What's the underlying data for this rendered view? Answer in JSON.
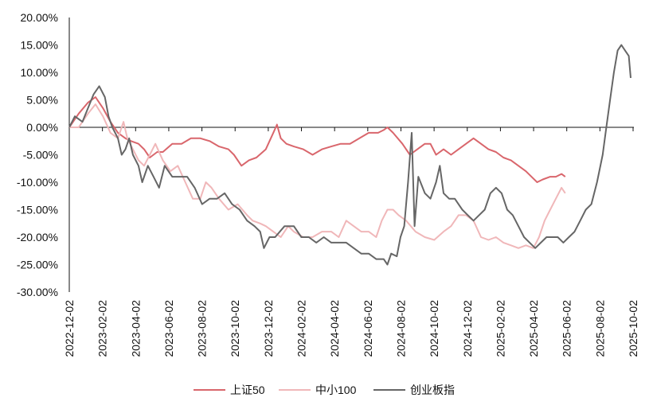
{
  "chart_data": {
    "type": "line",
    "ylim": [
      -30,
      20
    ],
    "yticks": [
      "20.00%",
      "15.00%",
      "10.00%",
      "5.00%",
      "0.00%",
      "-5.00%",
      "-10.00%",
      "-15.00%",
      "-20.00%",
      "-25.00%",
      "-30.00%"
    ],
    "xticks": [
      "2022-12-02",
      "2023-02-02",
      "2023-04-02",
      "2023-06-02",
      "2023-08-02",
      "2023-10-02",
      "2023-12-02",
      "2024-02-02",
      "2024-04-02",
      "2024-06-02",
      "2024-08-02",
      "2024-10-02",
      "2024-12-02",
      "2025-02-02",
      "2025-04-02",
      "2025-06-02",
      "2025-08-02",
      "2025-10-02"
    ],
    "series": [
      {
        "name": "上证50",
        "color": "#d9666c",
        "values": [
          [
            0,
            0
          ],
          [
            0.5,
            2.5
          ],
          [
            1,
            4.5
          ],
          [
            1.4,
            5.5
          ],
          [
            1.8,
            3.5
          ],
          [
            2.2,
            1
          ],
          [
            2.6,
            -1
          ],
          [
            3,
            -2
          ],
          [
            3.3,
            -2.5
          ],
          [
            3.7,
            -3
          ],
          [
            4,
            -4
          ],
          [
            4.3,
            -5.5
          ],
          [
            4.7,
            -4.5
          ],
          [
            5,
            -4.5
          ],
          [
            5.5,
            -3
          ],
          [
            6,
            -3
          ],
          [
            6.5,
            -2
          ],
          [
            7,
            -2
          ],
          [
            7.5,
            -2.5
          ],
          [
            8,
            -3.5
          ],
          [
            8.5,
            -4
          ],
          [
            8.8,
            -5
          ],
          [
            9.2,
            -7
          ],
          [
            9.6,
            -6
          ],
          [
            10,
            -5.5
          ],
          [
            10.5,
            -4
          ],
          [
            10.9,
            -1
          ],
          [
            11.1,
            0.5
          ],
          [
            11.3,
            -2
          ],
          [
            11.6,
            -3
          ],
          [
            12,
            -3.5
          ],
          [
            12.5,
            -4
          ],
          [
            13,
            -5
          ],
          [
            13.5,
            -4
          ],
          [
            14,
            -3.5
          ],
          [
            14.5,
            -3
          ],
          [
            15,
            -3
          ],
          [
            15.5,
            -2
          ],
          [
            16,
            -1
          ],
          [
            16.5,
            -1
          ],
          [
            16.8,
            -0.5
          ],
          [
            17,
            0
          ],
          [
            17.3,
            -1
          ],
          [
            17.8,
            -3
          ],
          [
            18.2,
            -5
          ],
          [
            18.6,
            -4
          ],
          [
            19,
            -3
          ],
          [
            19.3,
            -3
          ],
          [
            19.6,
            -5
          ],
          [
            20,
            -4
          ],
          [
            20.4,
            -5
          ],
          [
            20.8,
            -4
          ],
          [
            21.2,
            -3
          ],
          [
            21.6,
            -2
          ],
          [
            22,
            -3
          ],
          [
            22.4,
            -4
          ],
          [
            22.8,
            -4.5
          ],
          [
            23.2,
            -5.5
          ],
          [
            23.6,
            -6
          ],
          [
            24,
            -7
          ],
          [
            24.4,
            -8
          ],
          [
            24.7,
            -9
          ],
          [
            25,
            -10
          ],
          [
            25.3,
            -9.5
          ],
          [
            25.7,
            -9
          ],
          [
            26,
            -9
          ],
          [
            26.3,
            -8.5
          ],
          [
            26.5,
            -9
          ]
        ]
      },
      {
        "name": "中小100",
        "color": "#f0b7b9",
        "values": [
          [
            0,
            0
          ],
          [
            0.5,
            0
          ],
          [
            1,
            2.5
          ],
          [
            1.4,
            4.2
          ],
          [
            1.8,
            2
          ],
          [
            2.2,
            -1
          ],
          [
            2.6,
            -2
          ],
          [
            2.9,
            1
          ],
          [
            3.1,
            -2
          ],
          [
            3.4,
            -4
          ],
          [
            3.7,
            -6
          ],
          [
            4,
            -7
          ],
          [
            4.3,
            -5
          ],
          [
            4.6,
            -3
          ],
          [
            5,
            -6
          ],
          [
            5.4,
            -8
          ],
          [
            5.8,
            -7
          ],
          [
            6.2,
            -10
          ],
          [
            6.6,
            -13
          ],
          [
            7,
            -13
          ],
          [
            7.3,
            -10
          ],
          [
            7.6,
            -11
          ],
          [
            8,
            -13
          ],
          [
            8.5,
            -15
          ],
          [
            9,
            -14
          ],
          [
            9.5,
            -16
          ],
          [
            9.8,
            -17
          ],
          [
            10.2,
            -17.5
          ],
          [
            10.5,
            -18
          ],
          [
            10.9,
            -19
          ],
          [
            11.3,
            -20
          ],
          [
            11.7,
            -18
          ],
          [
            12,
            -19
          ],
          [
            12.5,
            -20
          ],
          [
            13,
            -20
          ],
          [
            13.5,
            -19
          ],
          [
            14,
            -19
          ],
          [
            14.4,
            -20
          ],
          [
            14.8,
            -17
          ],
          [
            15.2,
            -18
          ],
          [
            15.6,
            -19
          ],
          [
            16,
            -19
          ],
          [
            16.4,
            -20
          ],
          [
            16.7,
            -17
          ],
          [
            17,
            -15
          ],
          [
            17.3,
            -15
          ],
          [
            17.6,
            -16
          ],
          [
            18,
            -17
          ],
          [
            18.5,
            -19
          ],
          [
            19,
            -20
          ],
          [
            19.5,
            -20.5
          ],
          [
            20,
            -19
          ],
          [
            20.4,
            -18
          ],
          [
            20.8,
            -16
          ],
          [
            21.2,
            -16
          ],
          [
            21.6,
            -17
          ],
          [
            22,
            -20
          ],
          [
            22.4,
            -20.5
          ],
          [
            22.8,
            -20
          ],
          [
            23.2,
            -21
          ],
          [
            23.6,
            -21.5
          ],
          [
            24,
            -22
          ],
          [
            24.4,
            -21.5
          ],
          [
            24.8,
            -22
          ],
          [
            25.1,
            -20
          ],
          [
            25.4,
            -17
          ],
          [
            25.7,
            -15
          ],
          [
            26,
            -13
          ],
          [
            26.3,
            -11
          ],
          [
            26.5,
            -12
          ]
        ]
      },
      {
        "name": "创业板指",
        "color": "#666666",
        "values": [
          [
            0,
            0
          ],
          [
            0.3,
            2
          ],
          [
            0.7,
            1
          ],
          [
            1,
            3.5
          ],
          [
            1.3,
            6
          ],
          [
            1.6,
            7.5
          ],
          [
            1.9,
            5.5
          ],
          [
            2.1,
            2
          ],
          [
            2.3,
            0
          ],
          [
            2.6,
            -2
          ],
          [
            2.8,
            -5
          ],
          [
            3,
            -4
          ],
          [
            3.2,
            -2
          ],
          [
            3.4,
            -5
          ],
          [
            3.7,
            -7
          ],
          [
            3.9,
            -10
          ],
          [
            4.2,
            -7
          ],
          [
            4.5,
            -9
          ],
          [
            4.8,
            -11
          ],
          [
            5.1,
            -7
          ],
          [
            5.5,
            -9
          ],
          [
            5.9,
            -9
          ],
          [
            6.3,
            -9
          ],
          [
            6.7,
            -11
          ],
          [
            7.1,
            -14
          ],
          [
            7.5,
            -13
          ],
          [
            7.9,
            -13
          ],
          [
            8.3,
            -12
          ],
          [
            8.7,
            -14
          ],
          [
            9.1,
            -15
          ],
          [
            9.5,
            -17
          ],
          [
            9.9,
            -18
          ],
          [
            10.2,
            -19
          ],
          [
            10.4,
            -22
          ],
          [
            10.7,
            -20
          ],
          [
            11,
            -20
          ],
          [
            11.5,
            -18
          ],
          [
            12,
            -18
          ],
          [
            12.4,
            -20
          ],
          [
            12.8,
            -20
          ],
          [
            13.2,
            -21
          ],
          [
            13.6,
            -20
          ],
          [
            14,
            -21
          ],
          [
            14.4,
            -21
          ],
          [
            14.8,
            -21
          ],
          [
            15.2,
            -22
          ],
          [
            15.6,
            -23
          ],
          [
            16,
            -23
          ],
          [
            16.4,
            -24
          ],
          [
            16.8,
            -24
          ],
          [
            17,
            -25
          ],
          [
            17.2,
            -23
          ],
          [
            17.5,
            -23.5
          ],
          [
            17.7,
            -20
          ],
          [
            17.9,
            -18
          ],
          [
            18.1,
            -10
          ],
          [
            18.3,
            -1
          ],
          [
            18.45,
            -18
          ],
          [
            18.65,
            -9
          ],
          [
            19,
            -12
          ],
          [
            19.3,
            -13
          ],
          [
            19.6,
            -10
          ],
          [
            19.8,
            -7
          ],
          [
            20,
            -12
          ],
          [
            20.3,
            -13
          ],
          [
            20.6,
            -13
          ],
          [
            21,
            -15
          ],
          [
            21.3,
            -16
          ],
          [
            21.6,
            -17
          ],
          [
            21.9,
            -16
          ],
          [
            22.2,
            -15
          ],
          [
            22.5,
            -12
          ],
          [
            22.8,
            -11
          ],
          [
            23.1,
            -12
          ],
          [
            23.4,
            -15
          ],
          [
            23.7,
            -16
          ],
          [
            24,
            -18
          ],
          [
            24.3,
            -20
          ],
          [
            24.6,
            -21
          ],
          [
            24.9,
            -22
          ],
          [
            25.2,
            -21
          ],
          [
            25.5,
            -20
          ],
          [
            25.8,
            -20
          ],
          [
            26.1,
            -20
          ],
          [
            26.4,
            -21
          ],
          [
            26.7,
            -20
          ],
          [
            27,
            -19
          ],
          [
            27.3,
            -17
          ],
          [
            27.6,
            -15
          ],
          [
            27.9,
            -14
          ],
          [
            28.2,
            -10
          ],
          [
            28.5,
            -5
          ],
          [
            28.7,
            0
          ],
          [
            28.9,
            5
          ],
          [
            29.1,
            10
          ],
          [
            29.3,
            14
          ],
          [
            29.5,
            15
          ],
          [
            29.7,
            14
          ],
          [
            29.9,
            13
          ],
          [
            30,
            9
          ]
        ]
      }
    ]
  }
}
